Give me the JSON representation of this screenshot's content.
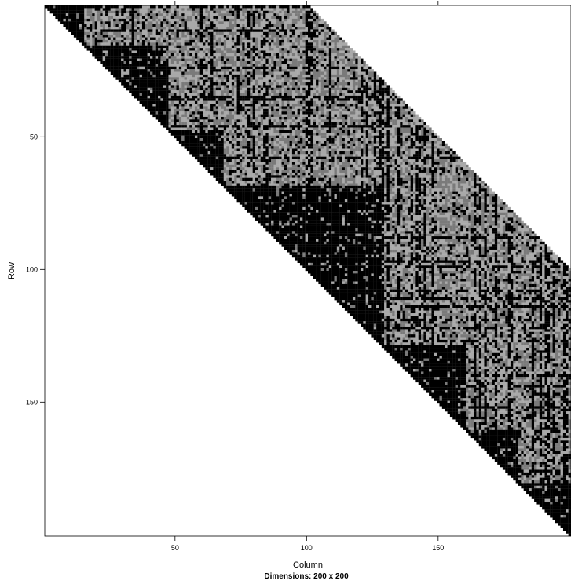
{
  "chart_data": {
    "type": "heatmap",
    "xlabel": "Column",
    "ylabel": "Row",
    "sub_label": "Dimensions: 200 x 200",
    "dimensions": {
      "rows": 200,
      "cols": 200
    },
    "x_ticks": [
      50,
      100,
      150
    ],
    "y_ticks": [
      50,
      100,
      150
    ],
    "x_range": [
      0.5,
      200.5
    ],
    "y_range": [
      0.5,
      200.5
    ],
    "structure": "upper-triangular band of width 100 above the diagonal",
    "band_width": 100,
    "blocks": [
      {
        "start": 1,
        "end": 15
      },
      {
        "start": 16,
        "end": 47
      },
      {
        "start": 48,
        "end": 68
      },
      {
        "start": 69,
        "end": 128
      },
      {
        "start": 129,
        "end": 160
      },
      {
        "start": 161,
        "end": 180
      },
      {
        "start": 181,
        "end": 200
      }
    ],
    "colors": {
      "dense": "#000000",
      "medium": "#7a7a7a",
      "light": "#a9a9a9",
      "background": "#ffffff"
    }
  }
}
